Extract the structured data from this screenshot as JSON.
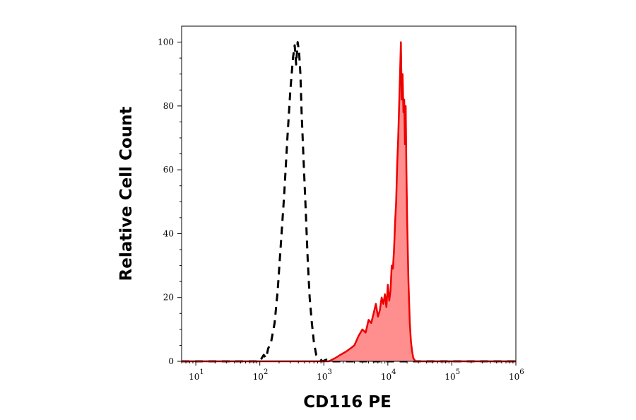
{
  "chart_data": {
    "type": "area",
    "title": "",
    "xlabel": "CD116 PE",
    "ylabel": "Relative Cell Count",
    "x_scale": "log",
    "xlim": [
      6,
      1000000
    ],
    "ylim": [
      0,
      105
    ],
    "x_ticks": [
      {
        "value": 10,
        "base": "10",
        "exp": "1"
      },
      {
        "value": 100,
        "base": "10",
        "exp": "2"
      },
      {
        "value": 1000,
        "base": "10",
        "exp": "3"
      },
      {
        "value": 10000,
        "base": "10",
        "exp": "4"
      },
      {
        "value": 100000,
        "base": "10",
        "exp": "5"
      },
      {
        "value": 1000000,
        "base": "10",
        "exp": "6"
      }
    ],
    "y_ticks": [
      0,
      20,
      40,
      60,
      80,
      100
    ],
    "grid": false,
    "series": [
      {
        "style": "dashed",
        "color": "#000000",
        "fill": "none",
        "x": [
          6,
          100,
          115,
          125,
          135,
          150,
          170,
          190,
          210,
          240,
          270,
          300,
          330,
          350,
          370,
          390,
          410,
          430,
          450,
          480,
          520,
          560,
          600,
          650,
          700,
          760,
          850,
          950,
          1100,
          1300,
          1000000
        ],
        "y": [
          0,
          0,
          2,
          1,
          4,
          6,
          12,
          22,
          35,
          52,
          70,
          85,
          95,
          99,
          93,
          100,
          97,
          90,
          78,
          64,
          48,
          32,
          20,
          12,
          6,
          2,
          1,
          0,
          0.5,
          0,
          0
        ]
      },
      {
        "style": "solid",
        "color": "#ee0000",
        "fill": "#ff8f8f",
        "x": [
          6,
          1200,
          1500,
          1800,
          2200,
          2600,
          3000,
          3500,
          4000,
          4500,
          5000,
          5500,
          6000,
          6500,
          7000,
          7500,
          8000,
          8500,
          9000,
          9500,
          10000,
          10500,
          11000,
          11500,
          12000,
          12500,
          13000,
          13500,
          14000,
          14500,
          15000,
          15500,
          16000,
          16500,
          17000,
          17500,
          18000,
          18500,
          19000,
          19500,
          20000,
          21000,
          22000,
          23000,
          24000,
          25000,
          26000,
          27000,
          28000,
          30000,
          1000000
        ],
        "y": [
          0,
          0,
          1,
          2,
          3,
          4,
          5,
          8,
          10,
          9,
          13,
          12,
          15,
          18,
          14,
          16,
          20,
          18,
          21,
          17,
          24,
          19,
          22,
          30,
          29,
          35,
          44,
          50,
          62,
          70,
          80,
          90,
          100,
          82,
          90,
          78,
          82,
          68,
          80,
          60,
          45,
          25,
          12,
          6,
          3,
          1,
          0.5,
          0,
          0,
          0,
          0
        ]
      }
    ]
  }
}
